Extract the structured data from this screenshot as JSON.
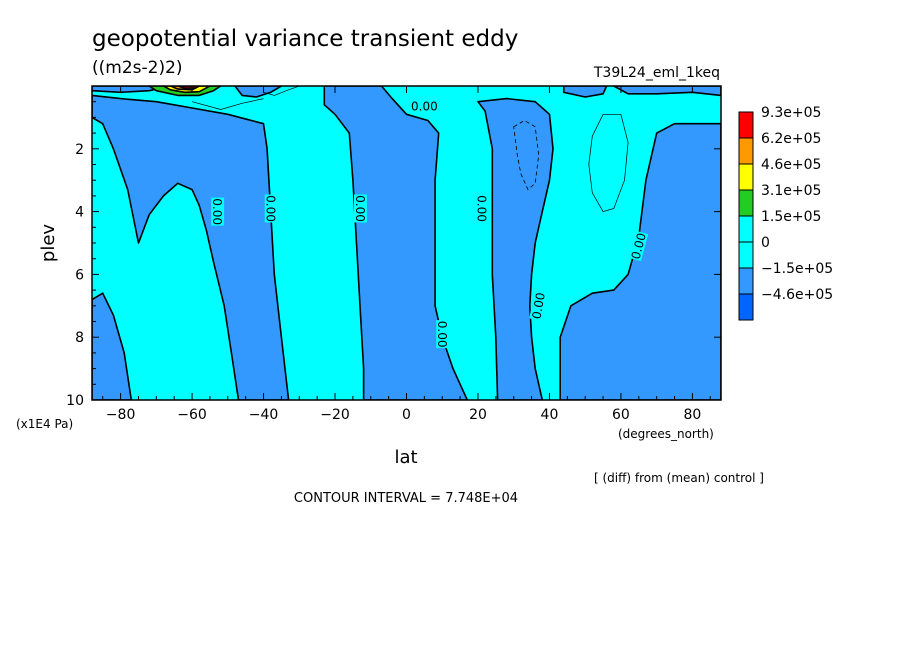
{
  "chart_data": {
    "type": "contour",
    "title": "geopotential variance transient eddy",
    "units": "((m2s-2)2)",
    "run_label": "T39L24_eml_1keq",
    "xlabel": "lat",
    "x_units": "(degrees_north)",
    "ylabel": "plev",
    "y_units": "(x1E4 Pa)",
    "x_range": [
      -88,
      88
    ],
    "y_range": [
      0,
      10
    ],
    "y_inverted": true,
    "x_ticks": [
      -80,
      -60,
      -40,
      -20,
      0,
      20,
      40,
      60,
      80
    ],
    "y_ticks": [
      2,
      4,
      6,
      8,
      10
    ],
    "contour_interval_text": "CONTOUR INTERVAL = 7.748E+04",
    "diff_note": "[ (diff) from (mean) control ]",
    "contour_label": "0.00",
    "legend": {
      "labels": [
        "9.3e+05",
        "6.2e+05",
        "4.6e+05",
        "3.1e+05",
        "1.5e+05",
        "0",
        "−1.5e+05",
        "−4.6e+05"
      ],
      "colors": [
        "#ff0000",
        "#ff9900",
        "#ffff00",
        "#22cc22",
        "#00ffff",
        "#00ffff",
        "#3399ff",
        "#0066ff"
      ]
    },
    "fill_colors": {
      "positive": "#00ffff",
      "negative": "#3399ff",
      "green": "#22cc22",
      "yellow": "#ffff00",
      "orange": "#ff9900",
      "red": "#ff0000"
    },
    "regions": [
      {
        "sign": "negative",
        "points": [
          [
            -88,
            1
          ],
          [
            -85,
            1.2
          ],
          [
            -82,
            2
          ],
          [
            -78,
            3.3
          ],
          [
            -75,
            5
          ],
          [
            -72,
            4.1
          ],
          [
            -68,
            3.5
          ],
          [
            -64,
            3.1
          ],
          [
            -60,
            3.3
          ],
          [
            -58,
            3.8
          ],
          [
            -56,
            4.6
          ],
          [
            -54,
            5.6
          ],
          [
            -51,
            7
          ],
          [
            -49,
            8.5
          ],
          [
            -47,
            10
          ],
          [
            -33,
            10
          ],
          [
            -35,
            8
          ],
          [
            -37,
            6
          ],
          [
            -38,
            4
          ],
          [
            -39,
            2
          ],
          [
            -40,
            1.2
          ],
          [
            -50,
            0.9
          ],
          [
            -60,
            0.7
          ],
          [
            -70,
            0.5
          ],
          [
            -80,
            0.4
          ],
          [
            -88,
            0.3
          ]
        ]
      },
      {
        "sign": "negative",
        "points": [
          [
            -88,
            6.8
          ],
          [
            -85,
            6.6
          ],
          [
            -82,
            7.3
          ],
          [
            -79,
            8.5
          ],
          [
            -77,
            10
          ],
          [
            -88,
            10
          ]
        ]
      },
      {
        "sign": "negative",
        "points": [
          [
            -23,
            0
          ],
          [
            -23,
            0.6
          ],
          [
            -20,
            0.9
          ],
          [
            -16,
            1.5
          ],
          [
            -15,
            3
          ],
          [
            -14,
            5
          ],
          [
            -13,
            7
          ],
          [
            -12,
            9
          ],
          [
            -12,
            10
          ],
          [
            17,
            10
          ],
          [
            13,
            9
          ],
          [
            10,
            8
          ],
          [
            8,
            7
          ],
          [
            8,
            5
          ],
          [
            8,
            3
          ],
          [
            9,
            1.5
          ],
          [
            6,
            1.1
          ],
          [
            0,
            0.9
          ],
          [
            -4,
            0.4
          ],
          [
            -7,
            0
          ],
          [
            -23,
            0
          ]
        ]
      },
      {
        "sign": "negative",
        "points": [
          [
            20,
            0.5
          ],
          [
            22,
            0.8
          ],
          [
            24,
            2
          ],
          [
            24,
            4
          ],
          [
            24,
            6
          ],
          [
            25,
            8
          ],
          [
            25.5,
            10
          ],
          [
            38,
            10
          ],
          [
            36,
            9
          ],
          [
            35,
            8
          ],
          [
            34.5,
            7
          ],
          [
            35,
            6
          ],
          [
            36,
            5
          ],
          [
            38,
            4
          ],
          [
            40,
            3
          ],
          [
            41,
            2
          ],
          [
            40,
            0.9
          ],
          [
            36,
            0.5
          ],
          [
            28,
            0.4
          ],
          [
            20,
            0.5
          ]
        ]
      },
      {
        "sign": "negative",
        "points": [
          [
            43,
            10
          ],
          [
            43,
            8
          ],
          [
            46,
            7
          ],
          [
            52,
            6.6
          ],
          [
            58,
            6.5
          ],
          [
            62,
            6
          ],
          [
            65,
            4.8
          ],
          [
            67,
            3
          ],
          [
            70,
            1.5
          ],
          [
            75,
            1.2
          ],
          [
            80,
            1.2
          ],
          [
            88,
            1.2
          ],
          [
            88,
            10
          ]
        ]
      },
      {
        "sign": "negative",
        "points": [
          [
            -88,
            0
          ],
          [
            -88,
            0.15
          ],
          [
            -80,
            0.2
          ],
          [
            -72,
            0.15
          ],
          [
            -66,
            0
          ],
          [
            -88,
            0
          ]
        ]
      },
      {
        "sign": "negative",
        "points": [
          [
            -48,
            0
          ],
          [
            -46,
            0.3
          ],
          [
            -42,
            0.35
          ],
          [
            -38,
            0.2
          ],
          [
            -35,
            0
          ],
          [
            -48,
            0
          ]
        ]
      },
      {
        "sign": "negative",
        "points": [
          [
            44,
            0
          ],
          [
            44,
            0.2
          ],
          [
            50,
            0.35
          ],
          [
            55,
            0.25
          ],
          [
            56,
            0
          ]
        ]
      },
      {
        "sign": "negative",
        "points": [
          [
            58,
            0
          ],
          [
            62,
            0.25
          ],
          [
            70,
            0.25
          ],
          [
            80,
            0.2
          ],
          [
            88,
            0.3
          ],
          [
            88,
            0
          ]
        ]
      },
      {
        "sign": "green",
        "points": [
          [
            -72,
            0
          ],
          [
            -70,
            0.15
          ],
          [
            -64,
            0.3
          ],
          [
            -58,
            0.3
          ],
          [
            -54,
            0.15
          ],
          [
            -52,
            0
          ]
        ]
      },
      {
        "sign": "yellow",
        "points": [
          [
            -68,
            0
          ],
          [
            -66,
            0.12
          ],
          [
            -62,
            0.2
          ],
          [
            -58,
            0.18
          ],
          [
            -55,
            0
          ]
        ]
      },
      {
        "sign": "orange",
        "points": [
          [
            -66,
            0
          ],
          [
            -64,
            0.1
          ],
          [
            -60,
            0.12
          ],
          [
            -58,
            0
          ]
        ]
      },
      {
        "sign": "red",
        "points": [
          [
            -64,
            0
          ],
          [
            -62,
            0.07
          ],
          [
            -59,
            0.06
          ],
          [
            -58,
            0
          ]
        ]
      }
    ],
    "dashed_contours": [
      {
        "points": [
          [
            30,
            1.3
          ],
          [
            33,
            1.1
          ],
          [
            36,
            1.3
          ],
          [
            37,
            2.2
          ],
          [
            36,
            3.1
          ],
          [
            34,
            3.3
          ],
          [
            32,
            2.8
          ],
          [
            31,
            2.2
          ],
          [
            30,
            1.3
          ]
        ]
      }
    ],
    "thin_contours": [
      {
        "points": [
          [
            52,
            1.6
          ],
          [
            55,
            0.9
          ],
          [
            60,
            0.9
          ],
          [
            62,
            1.8
          ],
          [
            61,
            3
          ],
          [
            58,
            3.9
          ],
          [
            55,
            4
          ],
          [
            52,
            3.4
          ],
          [
            51,
            2.5
          ],
          [
            52,
            1.6
          ]
        ]
      },
      {
        "points": [
          [
            -60,
            0.5
          ],
          [
            -52,
            0.75
          ],
          [
            -46,
            0.55
          ],
          [
            -40,
            0.4
          ]
        ]
      },
      {
        "points": [
          [
            -40,
            0.2
          ],
          [
            -37,
            0.3
          ],
          [
            -33,
            0.12
          ],
          [
            -30,
            0
          ]
        ]
      }
    ],
    "contour_labels": [
      {
        "x": -53,
        "y": 4.0,
        "rotate": 90
      },
      {
        "x": -38,
        "y": 3.9,
        "rotate": 90
      },
      {
        "x": -13,
        "y": 3.9,
        "rotate": 90
      },
      {
        "x": 21,
        "y": 3.9,
        "rotate": 90
      },
      {
        "x": 10,
        "y": 7.9,
        "rotate": 90
      },
      {
        "x": 37,
        "y": 7.0,
        "rotate": -80
      },
      {
        "x": 65,
        "y": 5.1,
        "rotate": -75
      },
      {
        "x": 5,
        "y": 0.65,
        "rotate": 0
      }
    ]
  }
}
